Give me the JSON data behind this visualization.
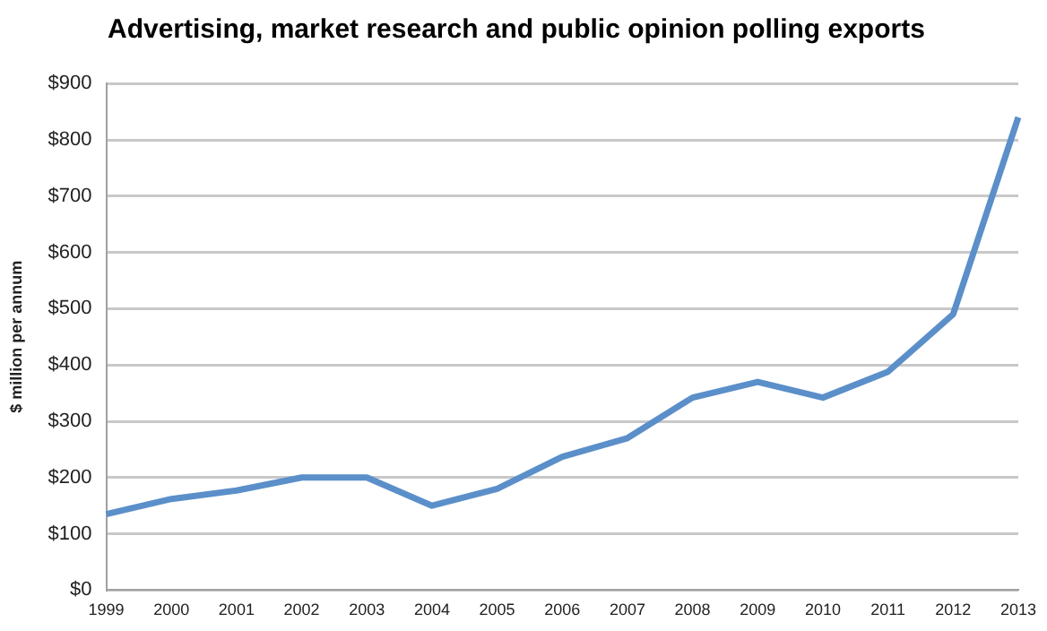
{
  "chart_data": {
    "type": "line",
    "title": "Advertising, market research and public opinion polling exports",
    "ylabel": "$ million per annum",
    "categories": [
      "1999",
      "2000",
      "2001",
      "2002",
      "2003",
      "2004",
      "2005",
      "2006",
      "2007",
      "2008",
      "2009",
      "2010",
      "2011",
      "2012",
      "2013"
    ],
    "series": [
      {
        "color": "#5b8fc9",
        "values": [
          135,
          162,
          177,
          200,
          200,
          150,
          180,
          237,
          270,
          342,
          370,
          342,
          388,
          490,
          840
        ]
      }
    ],
    "ylim": [
      0,
      900
    ],
    "yticks": [
      {
        "value": 0,
        "label": "$0"
      },
      {
        "value": 100,
        "label": "$100"
      },
      {
        "value": 200,
        "label": "$200"
      },
      {
        "value": 300,
        "label": "$300"
      },
      {
        "value": 400,
        "label": "$400"
      },
      {
        "value": 500,
        "label": "$500"
      },
      {
        "value": 600,
        "label": "$600"
      },
      {
        "value": 700,
        "label": "$700"
      },
      {
        "value": 800,
        "label": "$800"
      },
      {
        "value": 900,
        "label": "$900"
      }
    ],
    "grid": "y",
    "legend": false,
    "marker": "none",
    "line_style": "solid"
  }
}
